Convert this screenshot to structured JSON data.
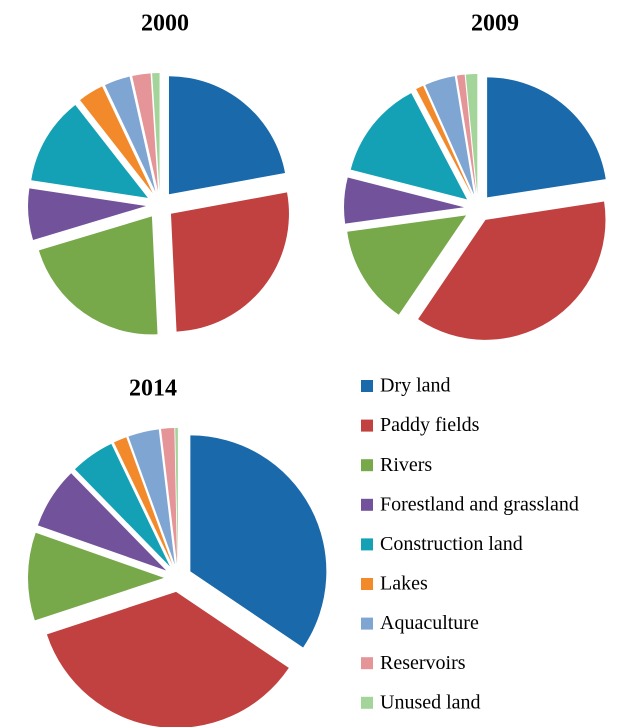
{
  "chart_data": [
    {
      "type": "pie",
      "title": "2000",
      "categories": [
        "Dry land",
        "Paddy fields",
        "Rivers",
        "Forestland and grassland",
        "Construction land",
        "Lakes",
        "Aquaculture",
        "Reservoirs",
        "Unused land"
      ],
      "values": [
        22,
        27,
        21,
        7,
        12,
        3.5,
        3.5,
        2.5,
        1
      ],
      "colors": [
        "#1a6aab",
        "#c0413f",
        "#77a84a",
        "#72539b",
        "#14a0b5",
        "#f28a2b",
        "#7fa5d3",
        "#e59497",
        "#a3d49a"
      ]
    },
    {
      "type": "pie",
      "title": "2009",
      "categories": [
        "Dry land",
        "Paddy fields",
        "Rivers",
        "Forestland and grassland",
        "Construction land",
        "Lakes",
        "Aquaculture",
        "Reservoirs",
        "Unused land"
      ],
      "values": [
        22,
        36,
        13,
        6,
        13,
        1,
        4,
        1,
        1.5
      ],
      "colors": [
        "#1a6aab",
        "#c0413f",
        "#77a84a",
        "#72539b",
        "#14a0b5",
        "#f28a2b",
        "#7fa5d3",
        "#e59497",
        "#a3d49a"
      ]
    },
    {
      "type": "pie",
      "title": "2014",
      "categories": [
        "Dry land",
        "Paddy fields",
        "Rivers",
        "Forestland and grassland",
        "Construction land",
        "Lakes",
        "Aquaculture",
        "Reservoirs",
        "Unused land"
      ],
      "values": [
        33,
        34,
        10,
        7,
        5,
        1.5,
        3.5,
        1.5,
        0.3
      ],
      "colors": [
        "#1a6aab",
        "#c0413f",
        "#77a84a",
        "#72539b",
        "#14a0b5",
        "#f28a2b",
        "#7fa5d3",
        "#e59497",
        "#a3d49a"
      ]
    }
  ]
}
